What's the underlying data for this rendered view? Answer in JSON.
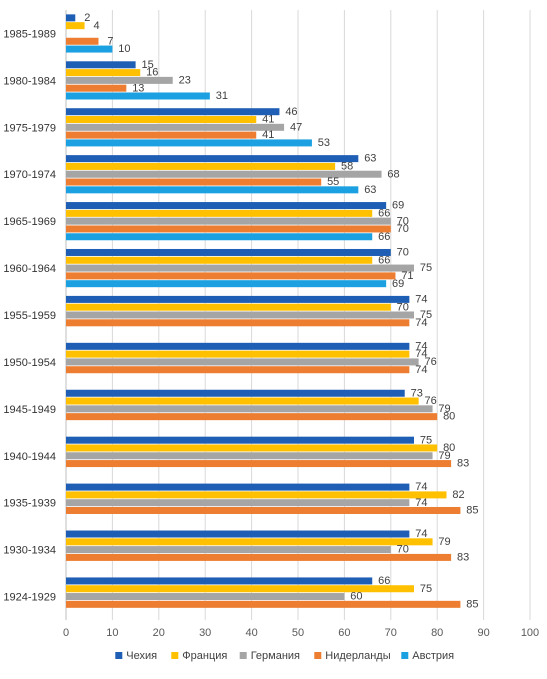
{
  "chart_data": {
    "type": "bar",
    "orientation": "horizontal",
    "categories": [
      "1985-1989",
      "1980-1984",
      "1975-1979",
      "1970-1974",
      "1965-1969",
      "1960-1964",
      "1955-1959",
      "1950-1954",
      "1945-1949",
      "1940-1944",
      "1935-1939",
      "1930-1934",
      "1924-1929"
    ],
    "series": [
      {
        "name": "Чехия",
        "color": "#1f5eb5",
        "values": [
          2,
          15,
          46,
          63,
          69,
          70,
          74,
          74,
          73,
          75,
          74,
          74,
          66
        ]
      },
      {
        "name": "Франция",
        "color": "#ffc000",
        "values": [
          4,
          16,
          41,
          58,
          66,
          66,
          70,
          74,
          76,
          80,
          82,
          79,
          75
        ]
      },
      {
        "name": "Германия",
        "color": "#a5a5a5",
        "values": [
          null,
          23,
          47,
          68,
          70,
          75,
          75,
          76,
          79,
          79,
          74,
          70,
          60
        ]
      },
      {
        "name": "Нидерланды",
        "color": "#ed7d31",
        "values": [
          7,
          13,
          41,
          55,
          70,
          71,
          74,
          74,
          80,
          83,
          85,
          83,
          85
        ]
      },
      {
        "name": "Австрия",
        "color": "#1ba1e2",
        "values": [
          10,
          31,
          53,
          63,
          66,
          69,
          null,
          null,
          null,
          null,
          null,
          null,
          null
        ]
      }
    ],
    "xlim": [
      0,
      100
    ],
    "xticks": [
      0,
      10,
      20,
      30,
      40,
      50,
      60,
      70,
      80,
      90,
      100
    ],
    "title": "",
    "xlabel": "",
    "ylabel": "",
    "grid": "vertical",
    "legend_position": "bottom"
  }
}
